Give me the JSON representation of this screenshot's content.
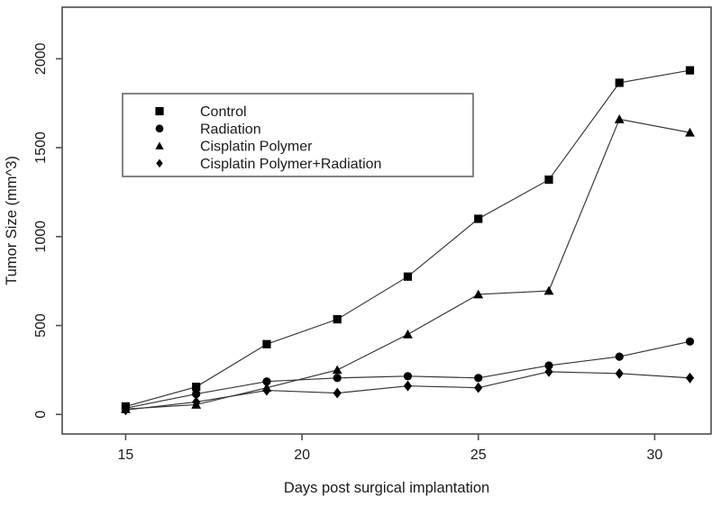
{
  "figure": {
    "background": "#ffffff",
    "frame_color": "#4d4d4d",
    "series_line_color": "#333333",
    "marker_color": "#000000",
    "text_color": "#1a1a1a",
    "legend_border_color": "#5a5a5a"
  },
  "chart_data": {
    "type": "line",
    "title": "",
    "xlabel": "Days post surgical implantation",
    "ylabel": "Tumor Size (mm^3)",
    "x": [
      15,
      17,
      19,
      21,
      23,
      25,
      27,
      29,
      31
    ],
    "x_tick_values": [
      15,
      20,
      25,
      30
    ],
    "x_tick_labels": [
      "15",
      "20",
      "25",
      "30"
    ],
    "y_tick_values": [
      0,
      500,
      1000,
      1500,
      2000
    ],
    "y_tick_labels": [
      "0",
      "500",
      "1000",
      "1500",
      "2000"
    ],
    "xlim": [
      13.2,
      31.6
    ],
    "ylim": [
      -110,
      2290
    ],
    "grid": false,
    "legend_position": "upper-left-inside",
    "series": [
      {
        "name": "Control",
        "marker": "square",
        "values": [
          45,
          155,
          395,
          535,
          775,
          1100,
          1320,
          1865,
          1935
        ]
      },
      {
        "name": "Radiation",
        "marker": "circle",
        "values": [
          35,
          115,
          185,
          205,
          215,
          205,
          275,
          325,
          410
        ]
      },
      {
        "name": "Cisplatin Polymer",
        "marker": "triangle",
        "values": [
          30,
          55,
          150,
          250,
          450,
          675,
          695,
          1660,
          1585
        ]
      },
      {
        "name": "Cisplatin Polymer+Radiation",
        "marker": "diamond",
        "values": [
          25,
          70,
          135,
          120,
          160,
          150,
          240,
          230,
          205
        ]
      }
    ]
  }
}
